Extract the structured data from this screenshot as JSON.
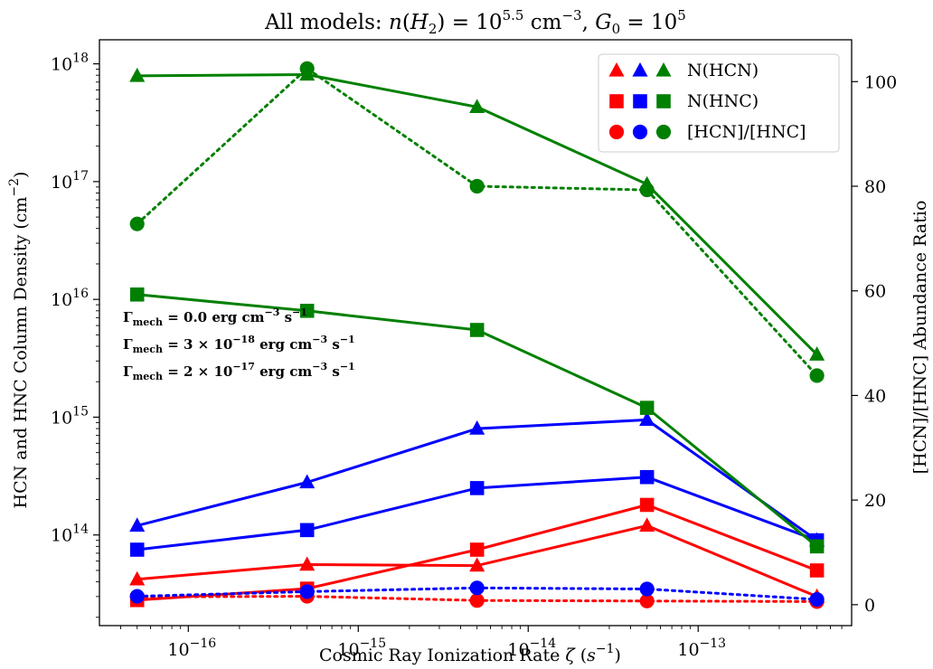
{
  "chart_data": {
    "type": "line",
    "title": {
      "prefix": "All models: ",
      "n_sym": "n",
      "h2_sym": "H",
      "h2_sub": "2",
      "n_val": "10",
      "n_exp": "5.5",
      "n_unit": " cm",
      "n_unit_exp": "−3",
      "g_sym": "G",
      "g_sub": "0",
      "g_val": "10",
      "g_exp": "5"
    },
    "xlabel": {
      "prefix": "Cosmic Ray Ionization Rate ",
      "zeta": "ζ",
      "unit": "s",
      "unit_exp": "−1"
    },
    "ylabel_left": {
      "text": "HCN and HNC Column Density (cm",
      "exp": "−2",
      "close": ")"
    },
    "ylabel_right": "[HCN]/[HNC] Abundance Ratio",
    "x_scale": "log",
    "y_left_scale": "log",
    "xlim": [
      3e-17,
      8e-13
    ],
    "ylim_left": [
      17000000000000.0,
      1.6e+18
    ],
    "ylim_right": [
      -4,
      108
    ],
    "x_ticks": [
      {
        "value": 1e-16,
        "base": "10",
        "exp": "−16"
      },
      {
        "value": 1e-15,
        "base": "10",
        "exp": "−15"
      },
      {
        "value": 1e-14,
        "base": "10",
        "exp": "−14"
      },
      {
        "value": 1e-13,
        "base": "10",
        "exp": "−13"
      }
    ],
    "y_left_ticks": [
      {
        "value": 100000000000000.0,
        "base": "10",
        "exp": "14"
      },
      {
        "value": 1000000000000000.0,
        "base": "10",
        "exp": "15"
      },
      {
        "value": 1e+16,
        "base": "10",
        "exp": "16"
      },
      {
        "value": 1e+17,
        "base": "10",
        "exp": "17"
      },
      {
        "value": 1e+18,
        "base": "10",
        "exp": "18"
      }
    ],
    "y_right_ticks": [
      0,
      20,
      40,
      60,
      80,
      100
    ],
    "x": [
      5e-17,
      5e-16,
      5e-15,
      5e-14,
      5e-13
    ],
    "series": [
      {
        "color": "#ff0000",
        "quantity": "N(HCN)",
        "axis": "left",
        "marker": "triangle",
        "style": "solid",
        "values": [
          42000000000000.0,
          56000000000000.0,
          55000000000000.0,
          120000000000000.0,
          30000000000000.0
        ]
      },
      {
        "color": "#ff0000",
        "quantity": "N(HNC)",
        "axis": "left",
        "marker": "square",
        "style": "solid",
        "values": [
          28000000000000.0,
          35000000000000.0,
          75000000000000.0,
          180000000000000.0,
          50000000000000.0
        ]
      },
      {
        "color": "#ff0000",
        "quantity": "[HCN]/[HNC]",
        "axis": "right",
        "marker": "circle",
        "style": "dotted",
        "values": [
          1.5,
          1.6,
          0.8,
          0.7,
          0.6
        ]
      },
      {
        "color": "#0000ff",
        "quantity": "N(HCN)",
        "axis": "left",
        "marker": "triangle",
        "style": "solid",
        "values": [
          120000000000000.0,
          280000000000000.0,
          800000000000000.0,
          950000000000000.0,
          90000000000000.0
        ]
      },
      {
        "color": "#0000ff",
        "quantity": "N(HNC)",
        "axis": "left",
        "marker": "square",
        "style": "solid",
        "values": [
          75000000000000.0,
          110000000000000.0,
          250000000000000.0,
          310000000000000.0,
          90000000000000.0
        ]
      },
      {
        "color": "#0000ff",
        "quantity": "[HCN]/[HNC]",
        "axis": "right",
        "marker": "circle",
        "style": "dotted",
        "values": [
          1.6,
          2.5,
          3.2,
          3.0,
          1.0
        ]
      },
      {
        "color": "#008000",
        "quantity": "N(HCN)",
        "axis": "left",
        "marker": "triangle",
        "style": "solid",
        "values": [
          7.9e+17,
          8.1e+17,
          4.3e+17,
          9.5e+16,
          3400000000000000.0
        ]
      },
      {
        "color": "#008000",
        "quantity": "N(HNC)",
        "axis": "left",
        "marker": "square",
        "style": "solid",
        "values": [
          1.1e+16,
          8000000000000000.0,
          5500000000000000.0,
          1200000000000000.0,
          80000000000000.0
        ]
      },
      {
        "color": "#008000",
        "quantity": "[HCN]/[HNC]",
        "axis": "right",
        "marker": "circle",
        "style": "dotted",
        "values": [
          72.8,
          102.5,
          80.0,
          79.3,
          43.8
        ]
      }
    ],
    "legend": {
      "placement": "top-right",
      "colors": [
        "#ff0000",
        "#0000ff",
        "#008000"
      ],
      "entries": [
        {
          "marker": "triangle",
          "label": "N(HCN)"
        },
        {
          "marker": "square",
          "label": "N(HNC)"
        },
        {
          "marker": "circle",
          "label": "[HCN]/[HNC]"
        }
      ]
    },
    "annotations": [
      {
        "color": "#ff0000",
        "sym": "Γ",
        "sub": "mech",
        "eq": " = 0.0",
        "mant": "",
        "base": "",
        "exp": "",
        "unit": " erg cm",
        "unit_exp1": "−3",
        "unit_mid": " s",
        "unit_exp2": "−1"
      },
      {
        "color": "#0000ff",
        "sym": "Γ",
        "sub": "mech",
        "eq": " = ",
        "mant": "3 × ",
        "base": "10",
        "exp": "−18",
        "unit": " erg cm",
        "unit_exp1": "−3",
        "unit_mid": " s",
        "unit_exp2": "−1"
      },
      {
        "color": "#008000",
        "sym": "Γ",
        "sub": "mech",
        "eq": " = ",
        "mant": "2 × ",
        "base": "10",
        "exp": "−17",
        "unit": " erg cm",
        "unit_exp1": "−3",
        "unit_mid": " s",
        "unit_exp2": "−1"
      }
    ]
  }
}
